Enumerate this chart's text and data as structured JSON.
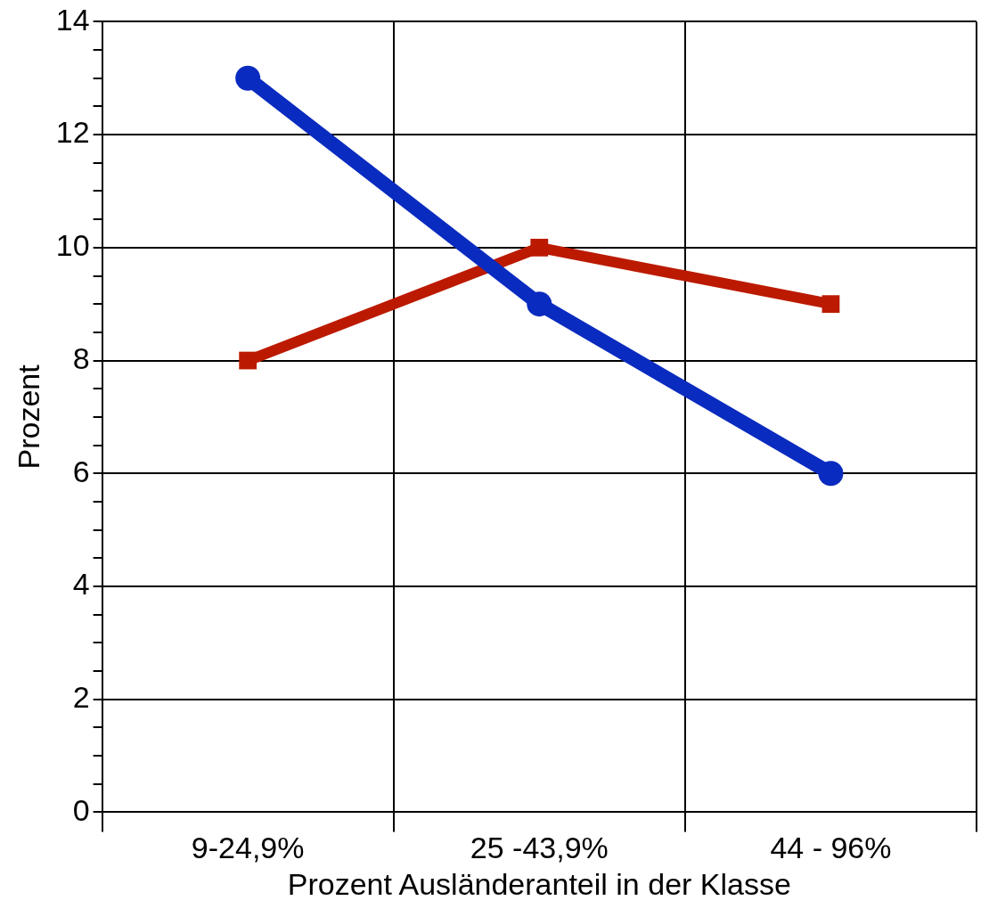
{
  "chart_data": {
    "type": "line",
    "xlabel": "Prozent Ausländeranteil in der Klasse",
    "ylabel": "Prozent",
    "categories": [
      "9-24,9%",
      "25 -43,9%",
      "44 - 96%"
    ],
    "series": [
      {
        "color": "#bb1a00",
        "values": [
          8,
          10,
          9
        ],
        "marker": "square"
      },
      {
        "color": "#0a2bbf",
        "values": [
          13,
          9,
          6
        ],
        "marker": "circle"
      }
    ],
    "ylim": [
      0,
      14
    ],
    "yticks": [
      0,
      {
        "value": 0.5,
        "label": null
      },
      {
        "value": 1,
        "label": null
      },
      {
        "value": 1.5,
        "label": null
      },
      2,
      {
        "value": 2.5,
        "label": null
      },
      {
        "value": 3,
        "label": null
      },
      {
        "value": 3.5,
        "label": null
      },
      4,
      {
        "value": 4.5,
        "label": null
      },
      {
        "value": 5,
        "label": null
      },
      {
        "value": 5.5,
        "label": null
      },
      6,
      {
        "value": 6.5,
        "label": null
      },
      {
        "value": 7,
        "label": null
      },
      {
        "value": 7.5,
        "label": null
      },
      8,
      {
        "value": 8.5,
        "label": null
      },
      {
        "value": 9,
        "label": null
      },
      {
        "value": 9.5,
        "label": null
      },
      10,
      {
        "value": 10.5,
        "label": null
      },
      {
        "value": 11,
        "label": null
      },
      {
        "value": 11.5,
        "label": null
      },
      12,
      {
        "value": 12.5,
        "label": null
      },
      {
        "value": 13,
        "label": null
      },
      {
        "value": 13.5,
        "label": null
      },
      14
    ],
    "grid": true,
    "legend": false,
    "line_style": "solid"
  }
}
